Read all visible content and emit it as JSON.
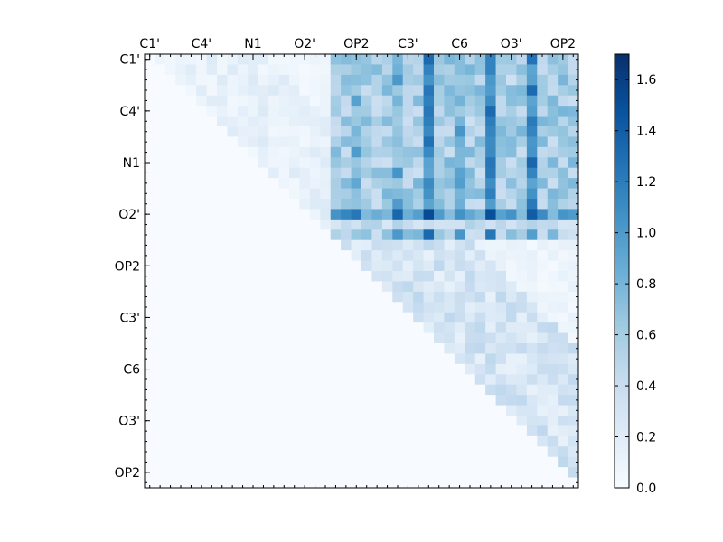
{
  "chart_data": {
    "type": "heatmap",
    "title": "",
    "xlabel": "",
    "ylabel": "",
    "axis_tick_labels": [
      "C1'",
      "C4'",
      "N1",
      "O2'",
      "OP2",
      "C3'",
      "C6",
      "O3'",
      "OP2"
    ],
    "grid_size": 42,
    "colormap": "Blues",
    "colorbar": {
      "min": 0.0,
      "max": 1.7,
      "ticks": [
        "0.0",
        "0.2",
        "0.4",
        "0.6",
        "0.8",
        "1.0",
        "1.2",
        "1.4",
        "1.6"
      ]
    },
    "matrix_structure": "upper triangular (values at or above the diagonal; below-diagonal cells are 0)",
    "value_range": [
      0.0,
      1.65
    ],
    "blocks": [
      {
        "rows": "C1'-O2'",
        "cols": "C1'-O2'",
        "typical_value": 0.1,
        "peak_value": 0.25
      },
      {
        "rows": "C1'-O2'",
        "cols": "OP2-OP2",
        "typical_value": 0.55,
        "peak_value": 1.65
      },
      {
        "rows": "OP2-O3'",
        "cols": "OP2-OP2",
        "typical_value": 0.2,
        "peak_value": 0.6
      }
    ]
  },
  "colors": {
    "low": "#f7fbff",
    "high": "#08306b"
  }
}
